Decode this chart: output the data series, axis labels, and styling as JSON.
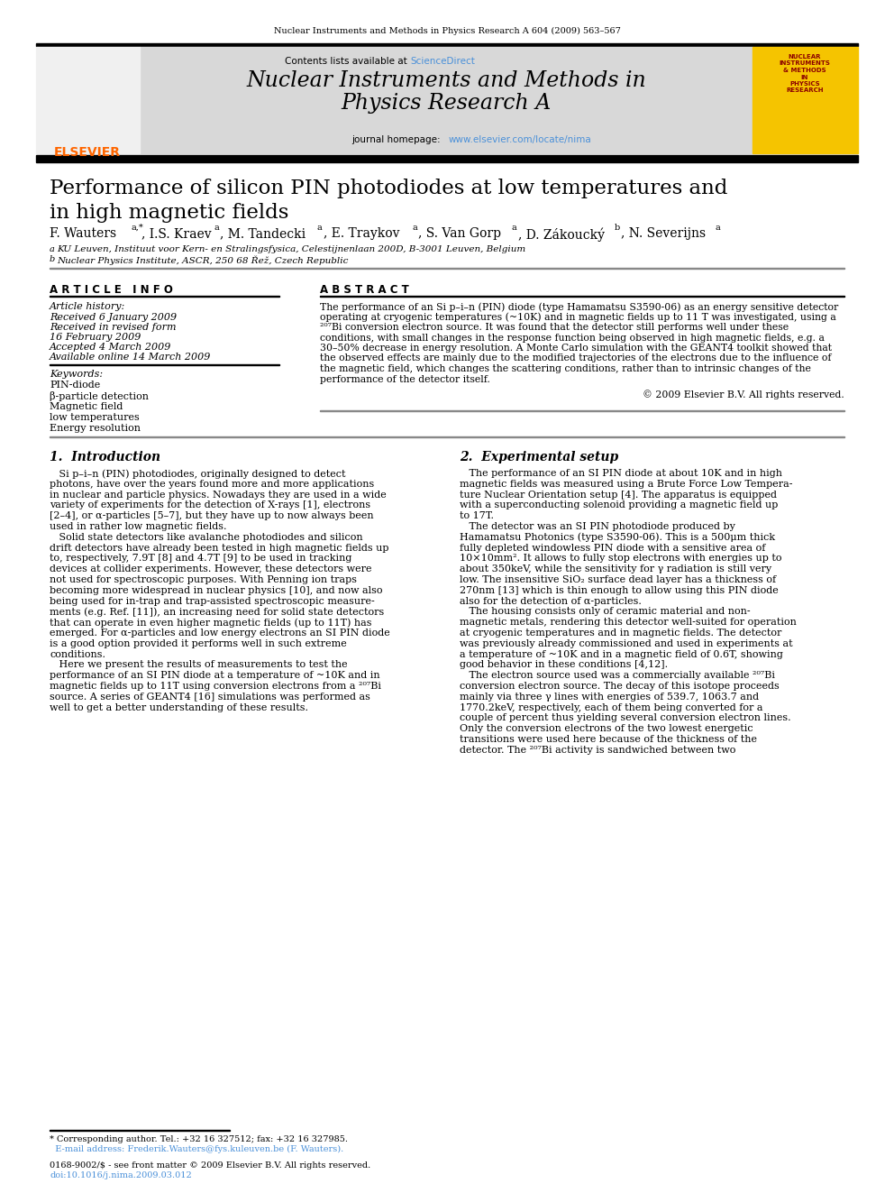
{
  "page_bg": "#ffffff",
  "header_journal": "Nuclear Instruments and Methods in Physics Research A 604 (2009) 563–567",
  "journal_header_bg": "#d0d0d0",
  "journal_title": "Nuclear Instruments and Methods in\nPhysics Research A",
  "contents_text": "Contents lists available at ScienceDirect",
  "journal_homepage": "journal homepage: www.elsevier.com/locate/nima",
  "paper_title": "Performance of silicon PIN photodiodes at low temperatures and\nin high magnetic fields",
  "article_info_title": "A R T I C L E   I N F O",
  "abstract_title": "A B S T R A C T",
  "article_dates": [
    "Received 6 January 2009",
    "Received in revised form",
    "16 February 2009",
    "Accepted 4 March 2009",
    "Available online 14 March 2009"
  ],
  "keywords": [
    "PIN-diode",
    "β-particle detection",
    "Magnetic field",
    "low temperatures",
    "Energy resolution"
  ],
  "copyright": "© 2009 Elsevier B.V. All rights reserved.",
  "elsevier_color": "#ff6600",
  "sciencedirect_color": "#4a90d9",
  "link_color": "#4a90d9"
}
